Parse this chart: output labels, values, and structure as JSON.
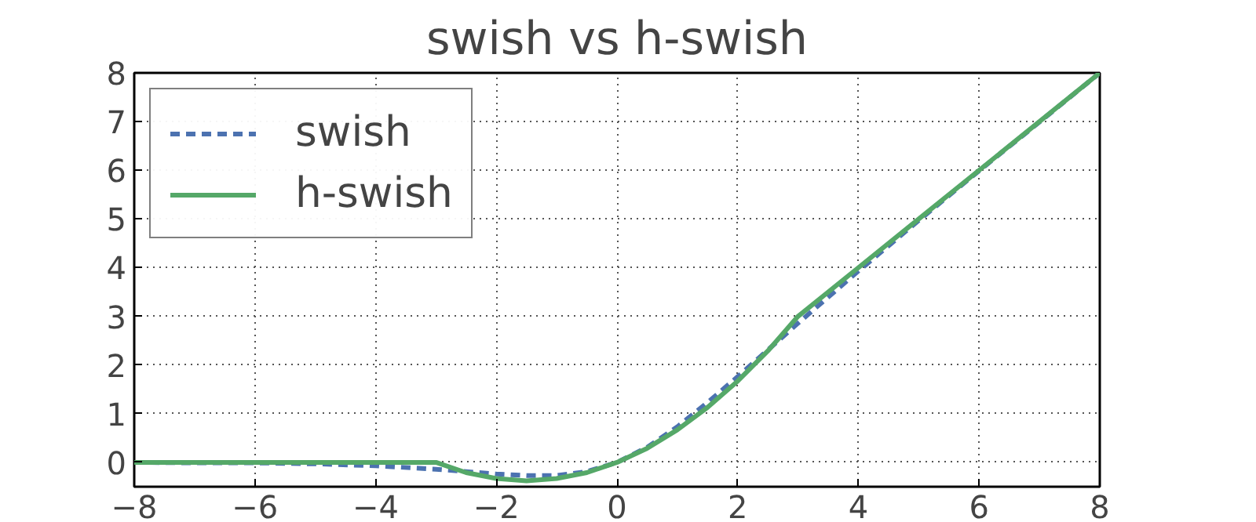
{
  "chart_data": {
    "type": "line",
    "title": "swish vs h-swish",
    "x": [
      -8,
      -7,
      -6,
      -5,
      -4,
      -3,
      -2.5,
      -2,
      -1.5,
      -1,
      -0.5,
      0,
      0.5,
      1,
      1.5,
      2,
      2.5,
      3,
      4,
      5,
      6,
      7,
      8
    ],
    "series": [
      {
        "name": "swish",
        "color": "#4c72b0",
        "line_style": "dashed",
        "values": [
          0.0,
          -0.01,
          -0.01,
          -0.03,
          -0.07,
          -0.14,
          -0.19,
          -0.24,
          -0.27,
          -0.27,
          -0.19,
          0,
          0.31,
          0.73,
          1.23,
          1.76,
          2.31,
          2.86,
          3.93,
          4.97,
          5.99,
          6.99,
          8.0
        ]
      },
      {
        "name": "h-swish",
        "color": "#55a868",
        "line_style": "solid",
        "values": [
          0,
          0,
          0,
          0,
          0,
          0,
          -0.21,
          -0.33,
          -0.38,
          -0.33,
          -0.21,
          0,
          0.29,
          0.67,
          1.13,
          1.67,
          2.29,
          3,
          4,
          5,
          6,
          7,
          8
        ]
      }
    ],
    "xlim": [
      -8,
      8
    ],
    "ylim": [
      -0.5,
      8
    ],
    "xticks": [
      -8,
      -6,
      -4,
      -2,
      0,
      2,
      4,
      6,
      8
    ],
    "yticks": [
      0,
      1,
      2,
      3,
      4,
      5,
      6,
      7,
      8
    ],
    "grid": true,
    "legend": "top left"
  }
}
